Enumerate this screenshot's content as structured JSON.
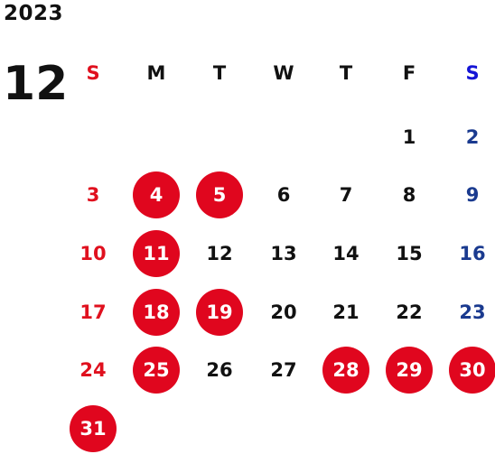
{
  "year": "2023",
  "month": "12",
  "weekday_headers": [
    "S",
    "M",
    "T",
    "W",
    "T",
    "F",
    "S"
  ],
  "colors": {
    "sunday": "#e0101e",
    "saturday": "#1a3a8f",
    "saturday_header": "#1515d6",
    "holiday_circle": "#e0061e",
    "weekday": "#111111"
  },
  "weeks": [
    [
      null,
      null,
      null,
      null,
      null,
      {
        "day": "1"
      },
      {
        "day": "2"
      }
    ],
    [
      {
        "day": "3"
      },
      {
        "day": "4",
        "holiday": true
      },
      {
        "day": "5",
        "holiday": true
      },
      {
        "day": "6"
      },
      {
        "day": "7"
      },
      {
        "day": "8"
      },
      {
        "day": "9"
      }
    ],
    [
      {
        "day": "10"
      },
      {
        "day": "11",
        "holiday": true
      },
      {
        "day": "12"
      },
      {
        "day": "13"
      },
      {
        "day": "14"
      },
      {
        "day": "15"
      },
      {
        "day": "16"
      }
    ],
    [
      {
        "day": "17"
      },
      {
        "day": "18",
        "holiday": true
      },
      {
        "day": "19",
        "holiday": true
      },
      {
        "day": "20"
      },
      {
        "day": "21"
      },
      {
        "day": "22"
      },
      {
        "day": "23"
      }
    ],
    [
      {
        "day": "24"
      },
      {
        "day": "25",
        "holiday": true
      },
      {
        "day": "26"
      },
      {
        "day": "27"
      },
      {
        "day": "28",
        "holiday": true
      },
      {
        "day": "29",
        "holiday": true
      },
      {
        "day": "30",
        "holiday": true
      }
    ],
    [
      {
        "day": "31",
        "holiday": true
      },
      null,
      null,
      null,
      null,
      null,
      null
    ]
  ]
}
